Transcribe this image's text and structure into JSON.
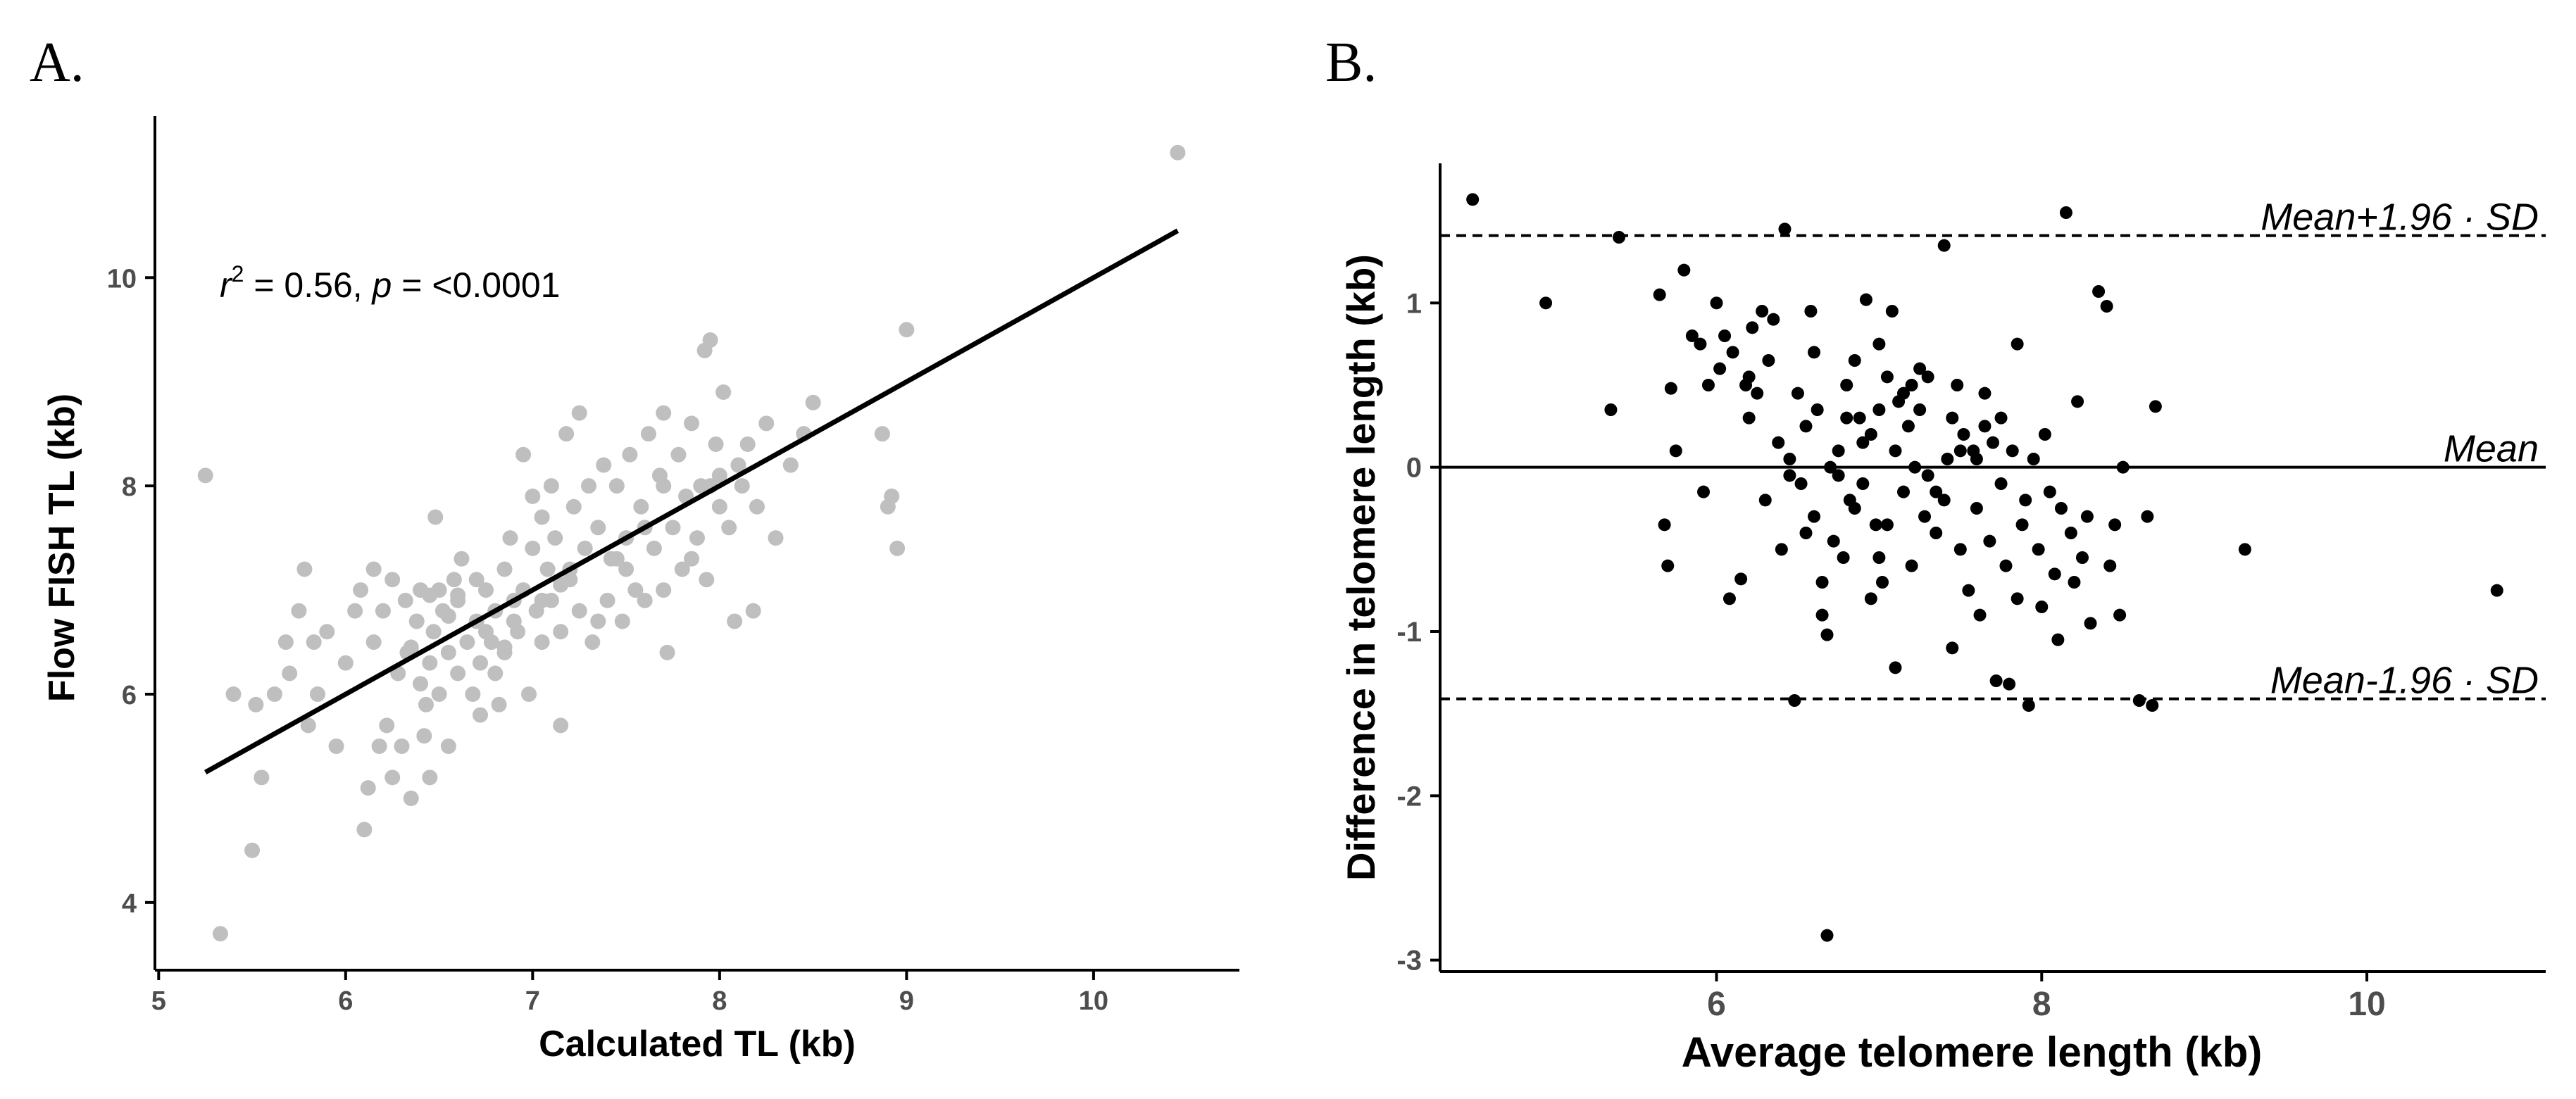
{
  "chart_data": [
    {
      "type": "scatter",
      "panel_label": "A.",
      "title": "",
      "xlabel": "Calculated TL (kb)",
      "ylabel": "Flow FISH TL (kb)",
      "xlim": [
        4.98,
        10.78
      ],
      "ylim": [
        3.35,
        11.55
      ],
      "x_ticks": [
        5,
        6,
        7,
        8,
        9,
        10
      ],
      "y_ticks": [
        4,
        6,
        8,
        10
      ],
      "grid": false,
      "point_color": "#bfbfbf",
      "line_color": "#000000",
      "annotation": {
        "r_symbol": "r",
        "exponent": "2",
        "r_text": " = 0.56, ",
        "p_symbol": "p",
        "p_text": " = <0.0001"
      },
      "regression_line": {
        "x": [
          5.25,
          10.45
        ],
        "y": [
          5.25,
          10.45
        ]
      },
      "points": [
        [
          5.25,
          8.1
        ],
        [
          5.33,
          3.7
        ],
        [
          5.4,
          6.0
        ],
        [
          5.5,
          4.5
        ],
        [
          5.52,
          5.9
        ],
        [
          5.55,
          5.2
        ],
        [
          5.62,
          6.0
        ],
        [
          5.68,
          6.5
        ],
        [
          5.7,
          6.2
        ],
        [
          5.75,
          6.8
        ],
        [
          5.78,
          7.2
        ],
        [
          5.8,
          5.7
        ],
        [
          5.83,
          6.5
        ],
        [
          5.85,
          6.0
        ],
        [
          5.9,
          6.6
        ],
        [
          5.95,
          5.5
        ],
        [
          6.0,
          6.3
        ],
        [
          6.05,
          6.8
        ],
        [
          6.08,
          7.0
        ],
        [
          6.1,
          4.7
        ],
        [
          6.12,
          5.1
        ],
        [
          6.15,
          6.5
        ],
        [
          6.15,
          7.2
        ],
        [
          6.18,
          5.5
        ],
        [
          6.2,
          6.8
        ],
        [
          6.22,
          5.7
        ],
        [
          6.25,
          7.1
        ],
        [
          6.25,
          5.2
        ],
        [
          6.28,
          6.2
        ],
        [
          6.3,
          5.5
        ],
        [
          6.32,
          6.9
        ],
        [
          6.33,
          6.4
        ],
        [
          6.35,
          5.0
        ],
        [
          6.38,
          6.7
        ],
        [
          6.4,
          6.1
        ],
        [
          6.4,
          7.0
        ],
        [
          6.42,
          5.6
        ],
        [
          6.43,
          5.9
        ],
        [
          6.45,
          6.3
        ],
        [
          6.45,
          5.2
        ],
        [
          6.47,
          6.6
        ],
        [
          6.48,
          7.7
        ],
        [
          6.5,
          6.0
        ],
        [
          6.5,
          7.0
        ],
        [
          6.52,
          6.8
        ],
        [
          6.55,
          5.5
        ],
        [
          6.55,
          6.4
        ],
        [
          6.58,
          7.1
        ],
        [
          6.6,
          6.2
        ],
        [
          6.6,
          6.9
        ],
        [
          6.62,
          7.3
        ],
        [
          6.65,
          6.5
        ],
        [
          6.68,
          6.0
        ],
        [
          6.7,
          6.7
        ],
        [
          6.72,
          6.3
        ],
        [
          6.72,
          5.8
        ],
        [
          6.75,
          7.0
        ],
        [
          6.78,
          6.5
        ],
        [
          6.8,
          6.8
        ],
        [
          6.8,
          6.2
        ],
        [
          6.82,
          5.9
        ],
        [
          6.85,
          7.2
        ],
        [
          6.85,
          6.4
        ],
        [
          6.88,
          7.5
        ],
        [
          6.9,
          6.9
        ],
        [
          6.92,
          6.6
        ],
        [
          6.95,
          8.3
        ],
        [
          6.95,
          7.0
        ],
        [
          6.98,
          6.0
        ],
        [
          7.0,
          7.4
        ],
        [
          7.02,
          6.8
        ],
        [
          7.05,
          7.7
        ],
        [
          7.05,
          6.5
        ],
        [
          7.08,
          7.2
        ],
        [
          7.1,
          8.0
        ],
        [
          7.1,
          6.9
        ],
        [
          7.12,
          7.5
        ],
        [
          7.15,
          6.6
        ],
        [
          7.15,
          5.7
        ],
        [
          7.18,
          8.5
        ],
        [
          7.2,
          7.1
        ],
        [
          7.22,
          7.8
        ],
        [
          7.25,
          6.8
        ],
        [
          7.25,
          8.7
        ],
        [
          7.28,
          7.4
        ],
        [
          7.3,
          8.0
        ],
        [
          7.32,
          6.5
        ],
        [
          7.35,
          7.6
        ],
        [
          7.38,
          8.2
        ],
        [
          7.4,
          6.9
        ],
        [
          7.42,
          7.3
        ],
        [
          7.45,
          8.0
        ],
        [
          7.48,
          6.7
        ],
        [
          7.5,
          7.5
        ],
        [
          7.52,
          8.3
        ],
        [
          7.55,
          7.0
        ],
        [
          7.58,
          7.8
        ],
        [
          7.6,
          6.9
        ],
        [
          7.62,
          8.5
        ],
        [
          7.65,
          7.4
        ],
        [
          7.68,
          8.1
        ],
        [
          7.7,
          7.0
        ],
        [
          7.7,
          8.7
        ],
        [
          7.72,
          6.4
        ],
        [
          7.75,
          7.6
        ],
        [
          7.78,
          8.3
        ],
        [
          7.8,
          7.2
        ],
        [
          7.82,
          7.9
        ],
        [
          7.85,
          8.6
        ],
        [
          7.88,
          7.5
        ],
        [
          7.9,
          8.0
        ],
        [
          7.92,
          9.3
        ],
        [
          7.93,
          7.1
        ],
        [
          7.95,
          9.4
        ],
        [
          7.98,
          8.4
        ],
        [
          8.0,
          7.8
        ],
        [
          8.02,
          8.9
        ],
        [
          8.05,
          7.6
        ],
        [
          8.08,
          6.7
        ],
        [
          8.1,
          8.2
        ],
        [
          8.12,
          8.0
        ],
        [
          8.15,
          8.4
        ],
        [
          8.18,
          6.8
        ],
        [
          8.2,
          7.8
        ],
        [
          8.25,
          8.6
        ],
        [
          8.3,
          7.5
        ],
        [
          8.38,
          8.2
        ],
        [
          8.45,
          8.5
        ],
        [
          8.5,
          8.8
        ],
        [
          8.87,
          8.5
        ],
        [
          8.9,
          7.8
        ],
        [
          8.92,
          7.9
        ],
        [
          8.95,
          7.4
        ],
        [
          9.0,
          9.5
        ],
        [
          10.45,
          11.2
        ],
        [
          6.6,
          6.95
        ],
        [
          6.75,
          6.6
        ],
        [
          7.0,
          7.9
        ],
        [
          7.2,
          7.2
        ],
        [
          7.35,
          6.7
        ],
        [
          7.5,
          7.2
        ],
        [
          7.6,
          7.6
        ],
        [
          7.85,
          7.3
        ],
        [
          8.0,
          8.1
        ],
        [
          6.9,
          6.7
        ],
        [
          6.35,
          6.45
        ],
        [
          6.55,
          6.75
        ],
        [
          6.85,
          6.45
        ],
        [
          7.15,
          7.05
        ],
        [
          7.45,
          7.3
        ],
        [
          7.7,
          8.0
        ],
        [
          7.95,
          8.0
        ],
        [
          6.45,
          6.95
        ],
        [
          6.7,
          7.1
        ],
        [
          7.05,
          6.9
        ]
      ]
    },
    {
      "type": "scatter",
      "panel_label": "B.",
      "title": "",
      "xlabel": "Average telomere length (kb)",
      "ylabel": "Difference in telomere length (kb)",
      "xlim": [
        4.3,
        11.1
      ],
      "ylim": [
        -3.07,
        1.85
      ],
      "x_ticks": [
        6,
        8,
        10
      ],
      "y_ticks": [
        -3,
        -2,
        -1,
        0,
        1
      ],
      "grid": false,
      "point_color": "#000000",
      "reference_lines": [
        {
          "label": "Mean+1.96 · SD",
          "y": 1.41,
          "style": "dashed"
        },
        {
          "label": "Mean",
          "y": 0.0,
          "style": "solid"
        },
        {
          "label": "Mean-1.96 · SD",
          "y": -1.41,
          "style": "dashed"
        }
      ],
      "points": [
        [
          4.5,
          1.63
        ],
        [
          4.95,
          1.0
        ],
        [
          5.4,
          1.4
        ],
        [
          5.35,
          0.35
        ],
        [
          5.65,
          1.05
        ],
        [
          5.68,
          -0.35
        ],
        [
          5.7,
          -0.6
        ],
        [
          5.72,
          0.48
        ],
        [
          5.75,
          0.1
        ],
        [
          5.8,
          1.2
        ],
        [
          5.85,
          0.8
        ],
        [
          5.9,
          0.75
        ],
        [
          5.92,
          -0.15
        ],
        [
          5.95,
          0.5
        ],
        [
          6.0,
          1.0
        ],
        [
          6.02,
          0.6
        ],
        [
          6.05,
          0.8
        ],
        [
          6.08,
          -0.8
        ],
        [
          6.1,
          0.7
        ],
        [
          6.15,
          -0.68
        ],
        [
          6.18,
          0.5
        ],
        [
          6.2,
          0.3
        ],
        [
          6.22,
          0.85
        ],
        [
          6.25,
          0.45
        ],
        [
          6.28,
          0.95
        ],
        [
          6.3,
          -0.2
        ],
        [
          6.32,
          0.65
        ],
        [
          6.35,
          0.9
        ],
        [
          6.38,
          0.15
        ],
        [
          6.4,
          -0.5
        ],
        [
          6.42,
          1.45
        ],
        [
          6.45,
          -0.05
        ],
        [
          6.48,
          -1.42
        ],
        [
          6.5,
          0.45
        ],
        [
          6.52,
          -0.1
        ],
        [
          6.55,
          0.25
        ],
        [
          6.58,
          0.95
        ],
        [
          6.6,
          -0.3
        ],
        [
          6.62,
          0.35
        ],
        [
          6.65,
          -0.7
        ],
        [
          6.65,
          -0.9
        ],
        [
          6.68,
          -1.02
        ],
        [
          6.68,
          -2.85
        ],
        [
          6.7,
          0.0
        ],
        [
          6.72,
          -0.45
        ],
        [
          6.75,
          0.1
        ],
        [
          6.78,
          -0.55
        ],
        [
          6.8,
          0.5
        ],
        [
          6.82,
          -0.2
        ],
        [
          6.85,
          0.65
        ],
        [
          6.88,
          0.3
        ],
        [
          6.9,
          -0.1
        ],
        [
          6.92,
          1.02
        ],
        [
          6.95,
          0.2
        ],
        [
          6.98,
          -0.35
        ],
        [
          7.0,
          0.75
        ],
        [
          7.02,
          -0.7
        ],
        [
          7.05,
          0.55
        ],
        [
          7.08,
          0.95
        ],
        [
          7.1,
          -1.22
        ],
        [
          7.12,
          0.4
        ],
        [
          7.15,
          -0.15
        ],
        [
          7.18,
          0.25
        ],
        [
          7.2,
          -0.6
        ],
        [
          7.22,
          0.0
        ],
        [
          7.25,
          0.35
        ],
        [
          7.28,
          -0.3
        ],
        [
          7.3,
          0.55
        ],
        [
          7.35,
          -0.4
        ],
        [
          7.4,
          1.35
        ],
        [
          7.42,
          0.05
        ],
        [
          7.45,
          -1.1
        ],
        [
          7.48,
          0.5
        ],
        [
          7.5,
          -0.5
        ],
        [
          7.52,
          0.2
        ],
        [
          7.55,
          -0.75
        ],
        [
          7.58,
          0.1
        ],
        [
          7.6,
          -0.25
        ],
        [
          7.62,
          -0.9
        ],
        [
          7.65,
          0.45
        ],
        [
          7.68,
          -0.45
        ],
        [
          7.7,
          0.15
        ],
        [
          7.72,
          -1.3
        ],
        [
          7.75,
          0.3
        ],
        [
          7.78,
          -0.6
        ],
        [
          7.8,
          -1.32
        ],
        [
          7.82,
          0.1
        ],
        [
          7.85,
          0.75
        ],
        [
          7.88,
          -0.35
        ],
        [
          7.9,
          -0.2
        ],
        [
          7.92,
          -1.45
        ],
        [
          7.95,
          0.05
        ],
        [
          7.98,
          -0.5
        ],
        [
          8.0,
          -0.85
        ],
        [
          8.02,
          0.2
        ],
        [
          8.05,
          -0.15
        ],
        [
          8.08,
          -0.65
        ],
        [
          8.1,
          -1.05
        ],
        [
          8.12,
          -0.25
        ],
        [
          8.15,
          1.55
        ],
        [
          8.18,
          -0.4
        ],
        [
          8.2,
          -0.7
        ],
        [
          8.22,
          0.4
        ],
        [
          8.25,
          -0.55
        ],
        [
          8.28,
          -0.3
        ],
        [
          8.3,
          -0.95
        ],
        [
          8.35,
          1.07
        ],
        [
          8.4,
          0.98
        ],
        [
          8.42,
          -0.6
        ],
        [
          8.45,
          -0.35
        ],
        [
          8.48,
          -0.9
        ],
        [
          8.5,
          0.0
        ],
        [
          8.6,
          -1.42
        ],
        [
          8.65,
          -0.3
        ],
        [
          8.68,
          -1.45
        ],
        [
          8.7,
          0.37
        ],
        [
          9.25,
          -0.5
        ],
        [
          10.8,
          -0.75
        ],
        [
          6.2,
          0.55
        ],
        [
          6.45,
          0.05
        ],
        [
          6.75,
          -0.05
        ],
        [
          7.0,
          -0.55
        ],
        [
          7.25,
          0.6
        ],
        [
          7.5,
          0.1
        ],
        [
          7.75,
          -0.1
        ],
        [
          7.0,
          0.35
        ],
        [
          6.85,
          -0.25
        ],
        [
          7.3,
          -0.05
        ],
        [
          6.6,
          0.7
        ],
        [
          6.9,
          0.15
        ],
        [
          7.15,
          0.45
        ],
        [
          7.4,
          -0.2
        ],
        [
          7.6,
          0.05
        ],
        [
          7.85,
          -0.8
        ],
        [
          6.55,
          -0.4
        ],
        [
          7.1,
          0.1
        ],
        [
          7.45,
          0.3
        ],
        [
          6.95,
          -0.8
        ],
        [
          7.35,
          -0.15
        ],
        [
          7.65,
          0.25
        ],
        [
          7.05,
          -0.35
        ],
        [
          6.8,
          0.3
        ],
        [
          7.2,
          0.5
        ]
      ]
    }
  ]
}
